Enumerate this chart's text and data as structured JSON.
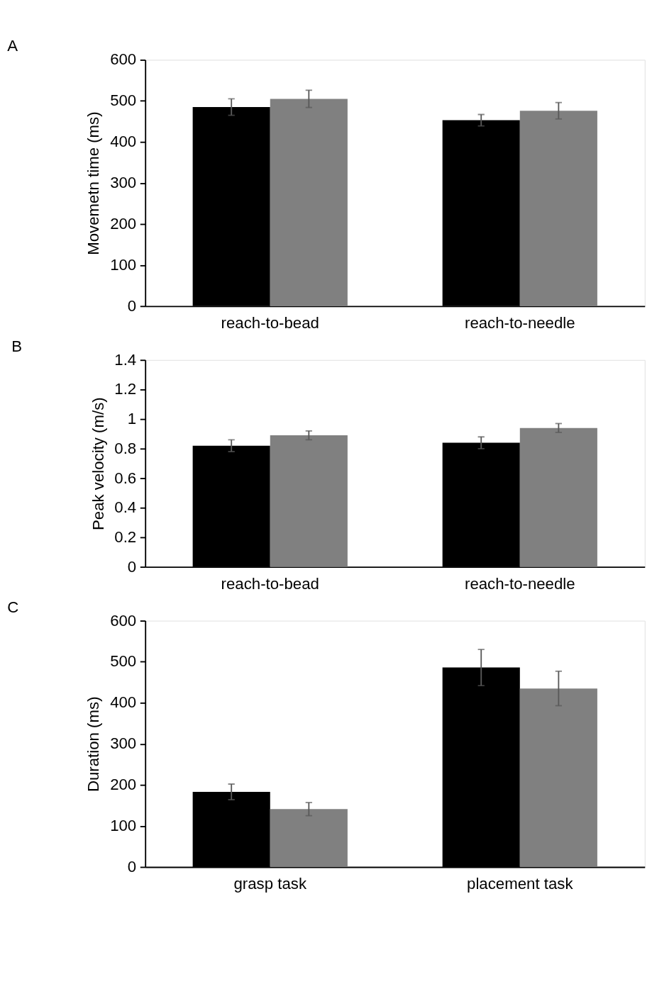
{
  "chart_data": [
    {
      "type": "bar",
      "title": "A",
      "ylabel": "Movemetn time (ms)",
      "categories": [
        "reach-to-bead",
        "reach-to-needle"
      ],
      "ylim": [
        0,
        600
      ],
      "yticks": [
        0,
        100,
        200,
        300,
        400,
        500,
        600
      ],
      "grid": false,
      "legend": false,
      "series": [
        {
          "color": "#000000",
          "values": [
            485,
            453
          ],
          "errors": [
            20,
            14
          ]
        },
        {
          "color": "#808080",
          "values": [
            505,
            476
          ],
          "errors": [
            21,
            20
          ]
        }
      ]
    },
    {
      "type": "bar",
      "title": "B",
      "ylabel": "Peak velocity (m/s)",
      "categories": [
        "reach-to-bead",
        "reach-to-needle"
      ],
      "ylim": [
        0,
        1.4
      ],
      "yticks": [
        0,
        0.2,
        0.4,
        0.6,
        0.8,
        1,
        1.2,
        1.4
      ],
      "grid": false,
      "legend": false,
      "series": [
        {
          "color": "#000000",
          "values": [
            0.82,
            0.84
          ],
          "errors": [
            0.04,
            0.04
          ]
        },
        {
          "color": "#808080",
          "values": [
            0.89,
            0.94
          ],
          "errors": [
            0.03,
            0.03
          ]
        }
      ]
    },
    {
      "type": "bar",
      "title": "C",
      "ylabel": "Duration (ms)",
      "categories": [
        "grasp task",
        "placement task"
      ],
      "ylim": [
        0,
        600
      ],
      "yticks": [
        0,
        100,
        200,
        300,
        400,
        500,
        600
      ],
      "grid": false,
      "legend": false,
      "series": [
        {
          "color": "#000000",
          "values": [
            183,
            486
          ],
          "errors": [
            19,
            44
          ]
        },
        {
          "color": "#808080",
          "values": [
            141,
            435
          ],
          "errors": [
            16,
            42
          ]
        }
      ]
    }
  ]
}
